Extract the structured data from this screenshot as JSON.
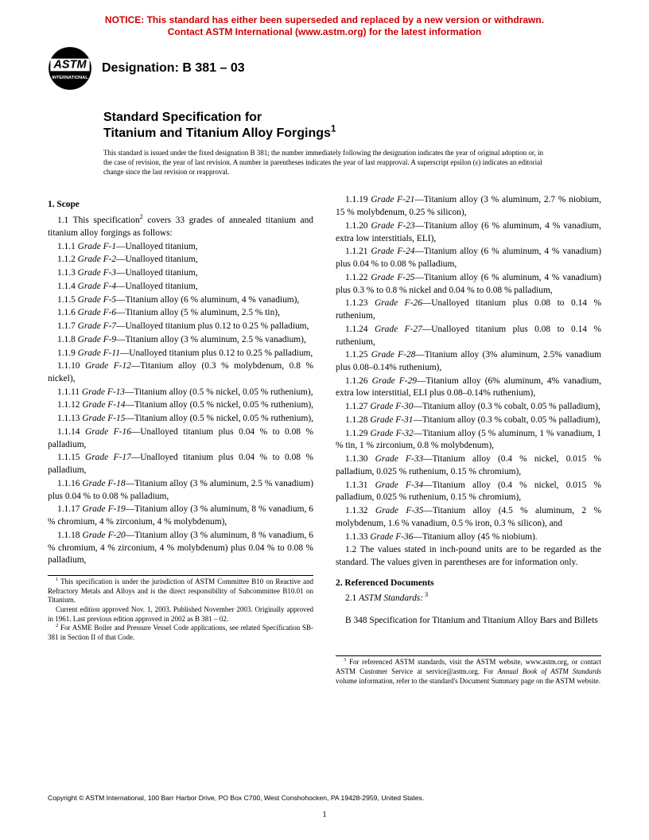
{
  "notice": {
    "line1": "NOTICE: This standard has either been superseded and replaced by a new version or withdrawn.",
    "line2": "Contact ASTM International (www.astm.org) for the latest information",
    "color": "#d00000"
  },
  "logo": {
    "top_text": "ASTM",
    "bottom_text": "INTERNATIONAL"
  },
  "designation": "Designation: B 381 – 03",
  "title_prefix": "Standard Specification for",
  "title_main": "Titanium and Titanium Alloy Forgings",
  "title_super": "1",
  "issuance": "This standard is issued under the fixed designation B 381; the number immediately following the designation indicates the year of original adoption or, in the case of revision, the year of last revision. A number in parentheses indicates the year of last reapproval. A superscript epsilon (ε) indicates an editorial change since the last revision or reapproval.",
  "scope_head": "1.  Scope",
  "scope_intro_a": "1.1 This specification",
  "scope_intro_sup": "2",
  "scope_intro_b": " covers 33 grades of annealed titanium and titanium alloy forgings as follows:",
  "left_items": [
    {
      "n": "1.1.1",
      "g": "Grade F-1",
      "d": "—Unalloyed titanium,"
    },
    {
      "n": "1.1.2",
      "g": "Grade F-2",
      "d": "—Unalloyed titanium,"
    },
    {
      "n": "1.1.3",
      "g": "Grade F-3",
      "d": "—Unalloyed titanium,"
    },
    {
      "n": "1.1.4",
      "g": "Grade F-4",
      "d": "—Unalloyed titanium,"
    },
    {
      "n": "1.1.5",
      "g": "Grade F-5",
      "d": "—Titanium alloy (6 % aluminum, 4 % vanadium),"
    },
    {
      "n": "1.1.6",
      "g": "Grade F-6",
      "d": "—Titanium alloy (5 % aluminum, 2.5 % tin),"
    },
    {
      "n": "1.1.7",
      "g": "Grade F-7",
      "d": "—Unalloyed titanium plus 0.12 to 0.25 % palladium,"
    },
    {
      "n": "1.1.8",
      "g": "Grade F-9",
      "d": "—Titanium alloy (3 % aluminum, 2.5 % vanadium),"
    },
    {
      "n": "1.1.9",
      "g": "Grade F-11",
      "d": "—Unalloyed titanium plus 0.12 to 0.25 % palladium,"
    },
    {
      "n": "1.1.10",
      "g": "Grade F-12",
      "d": "—Titanium alloy (0.3 % molybdenum, 0.8 % nickel),"
    },
    {
      "n": "1.1.11",
      "g": "Grade F-13",
      "d": "—Titanium alloy (0.5 % nickel, 0.05 % ruthenium),"
    },
    {
      "n": "1.1.12",
      "g": "Grade F-14",
      "d": "—Titanium alloy (0.5 % nickel, 0.05 % ruthenium),"
    },
    {
      "n": "1.1.13",
      "g": "Grade F-15",
      "d": "—Titanium alloy (0.5 % nickel, 0.05 % ruthenium),"
    },
    {
      "n": "1.1.14",
      "g": "Grade F-16",
      "d": "—Unalloyed titanium plus 0.04 % to 0.08 % palladium,"
    },
    {
      "n": "1.1.15",
      "g": "Grade F-17",
      "d": "—Unalloyed titanium plus 0.04 % to 0.08 % palladium,"
    },
    {
      "n": "1.1.16",
      "g": "Grade F-18",
      "d": "—Titanium alloy (3 % aluminum, 2.5 % vanadium) plus 0.04 % to 0.08 % palladium,"
    },
    {
      "n": "1.1.17",
      "g": "Grade F-19",
      "d": "—Titanium alloy (3 % aluminum, 8 % vanadium, 6 % chromium, 4 % zirconium, 4 % molybdenum),"
    },
    {
      "n": "1.1.18",
      "g": "Grade F-20",
      "d": "—Titanium alloy (3 % aluminum, 8 % vanadium, 6 % chromium, 4 % zirconium, 4 % molybdenum) plus 0.04 % to 0.08 % palladium,"
    }
  ],
  "right_items": [
    {
      "n": "1.1.19",
      "g": "Grade F-21",
      "d": "—Titanium alloy (3 % aluminum, 2.7 % niobium, 15 % molybdenum, 0.25 % silicon),"
    },
    {
      "n": "1.1.20",
      "g": "Grade F-23",
      "d": "—Titanium alloy (6 % aluminum, 4 % vanadium, extra low interstitials, ELI),"
    },
    {
      "n": "1.1.21",
      "g": "Grade F-24",
      "d": "—Titanium alloy (6 % aluminum, 4 % vanadium) plus 0.04 % to 0.08 % palladium,"
    },
    {
      "n": "1.1.22",
      "g": "Grade F-25",
      "d": "—Titanium alloy (6 % aluminum, 4 % vanadium) plus 0.3 % to 0.8 % nickel and 0.04 % to 0.08 % palladium,"
    },
    {
      "n": "1.1.23",
      "g": "Grade F-26",
      "d": "—Unalloyed titanium plus 0.08 to 0.14 % ruthenium,"
    },
    {
      "n": "1.1.24",
      "g": "Grade F-27",
      "d": "—Unalloyed titanium plus 0.08 to 0.14 % ruthenium,"
    },
    {
      "n": "1.1.25",
      "g": "Grade F-28",
      "d": "—Titanium alloy (3% aluminum, 2.5% vanadium plus 0.08–0.14% ruthenium),"
    },
    {
      "n": "1.1.26",
      "g": "Grade F-29",
      "d": "—Titanium alloy (6% aluminum, 4% vanadium, extra low interstitial, ELI plus 0.08–0.14% ruthenium),"
    },
    {
      "n": "1.1.27",
      "g": "Grade F-30",
      "d": "—Titanium alloy (0.3 % cobalt, 0.05 % palladium),"
    },
    {
      "n": "1.1.28",
      "g": "Grade F-31",
      "d": "—Titanium alloy (0.3 % cobalt, 0.05 % palladium),"
    },
    {
      "n": "1.1.29",
      "g": "Grade F-32",
      "d": "—Titanium alloy (5 % aluminum, 1 % vanadium, 1 % tin, 1 % zirconium, 0.8 % molybdenum),"
    },
    {
      "n": "1.1.30",
      "g": "Grade F-33",
      "d": "—Titanium alloy (0.4 % nickel, 0.015 % palladium, 0.025 % ruthenium, 0.15 % chromium),"
    },
    {
      "n": "1.1.31",
      "g": "Grade F-34",
      "d": "—Titanium alloy (0.4 % nickel, 0.015 % palladium, 0.025 % ruthenium, 0.15 % chromium),"
    },
    {
      "n": "1.1.32",
      "g": "Grade F-35",
      "d": "—Titanium alloy (4.5 % aluminum, 2 % molybdenum, 1.6 % vanadium, 0.5 % iron, 0.3 % silicon), and"
    },
    {
      "n": "1.1.33",
      "g": "Grade F-36",
      "d": "—Titanium alloy (45 % niobium)."
    }
  ],
  "values_para": "1.2 The values stated in inch-pound units are to be regarded as the standard. The values given in parentheses are for information only.",
  "ref_head": "2.  Referenced Documents",
  "ref_sub_a": "2.1 ",
  "ref_sub_b": "ASTM Standards:",
  "ref_sub_sup": " 3",
  "ref_item": "B 348  Specification for Titanium and Titanium Alloy Bars and Billets",
  "fn1": " This specification is under the jurisdiction of ASTM Committee B10 on Reactive and Refractory Metals and Alloys and is the direct responsibility of Subcommittee B10.01 on Titanium.",
  "fn1b": "Current edition approved Nov. 1, 2003. Published November 2003. Originally approved in 1961. Last previous edition approved in 2002 as B 381 – 02.",
  "fn2": " For ASME Boiler and Pressure Vessel Code applications, see related Specification SB-381 in Section II of that Code.",
  "fn3_a": " For referenced ASTM standards, visit the ASTM website, www.astm.org, or contact ASTM Customer Service at service@astm.org. For ",
  "fn3_i": "Annual Book of ASTM Standards",
  "fn3_b": " volume information, refer to the standard's Document Summary page on the ASTM website.",
  "copyright": "Copyright © ASTM International, 100 Barr Harbor Drive, PO Box C700, West Conshohocken, PA 19428-2959, United States.",
  "pagenum": "1",
  "colors": {
    "text": "#000000",
    "background": "#ffffff"
  }
}
